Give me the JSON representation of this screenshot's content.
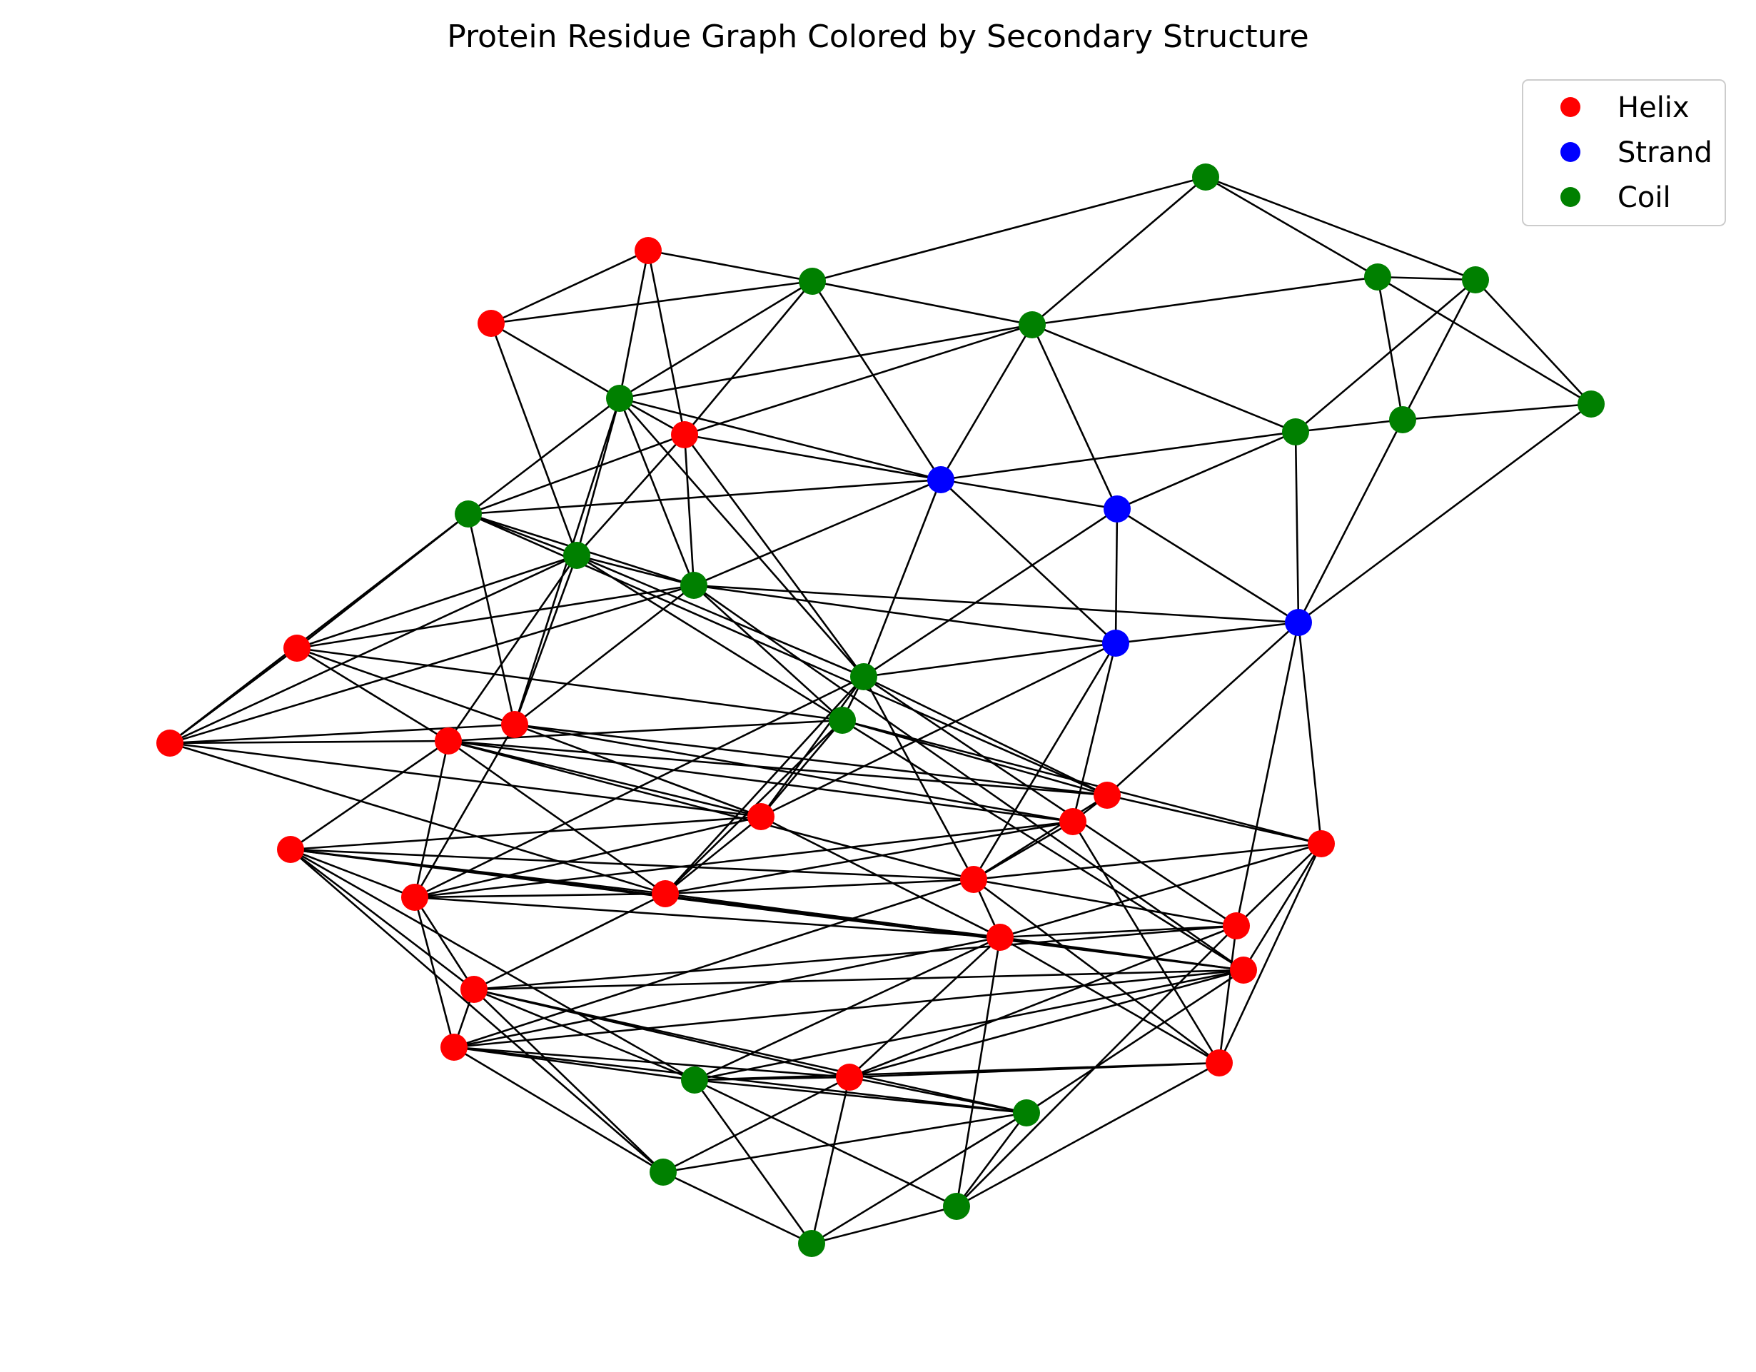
{
  "title": "Protein Residue Graph Colored by Secondary Structure",
  "legend": {
    "placement": "top-right",
    "entries": [
      {
        "label": "Helix",
        "color": "#ff0000"
      },
      {
        "label": "Strand",
        "color": "#0000ff"
      },
      {
        "label": "Coil",
        "color": "#008000"
      }
    ]
  },
  "edge_color": "#000000",
  "nodes": [
    {
      "id": "n1",
      "type": "Coil"
    },
    {
      "id": "n2",
      "type": "Helix"
    },
    {
      "id": "n3",
      "type": "Coil"
    },
    {
      "id": "n4",
      "type": "Helix"
    },
    {
      "id": "n5",
      "type": "Coil"
    },
    {
      "id": "n6",
      "type": "Coil"
    },
    {
      "id": "n7",
      "type": "Coil"
    },
    {
      "id": "n8",
      "type": "Coil"
    },
    {
      "id": "n9",
      "type": "Coil"
    },
    {
      "id": "n10",
      "type": "Coil"
    },
    {
      "id": "n11",
      "type": "Coil"
    },
    {
      "id": "n12",
      "type": "Helix"
    },
    {
      "id": "n13",
      "type": "Strand"
    },
    {
      "id": "n14",
      "type": "Strand"
    },
    {
      "id": "n15",
      "type": "Coil"
    },
    {
      "id": "n16",
      "type": "Coil"
    },
    {
      "id": "n17",
      "type": "Coil"
    },
    {
      "id": "n18",
      "type": "Strand"
    },
    {
      "id": "n19",
      "type": "Strand"
    },
    {
      "id": "n20",
      "type": "Helix"
    },
    {
      "id": "n21",
      "type": "Coil"
    },
    {
      "id": "n22",
      "type": "Coil"
    },
    {
      "id": "n23",
      "type": "Helix"
    },
    {
      "id": "n24",
      "type": "Helix"
    },
    {
      "id": "n25",
      "type": "Helix"
    },
    {
      "id": "n26",
      "type": "Helix"
    },
    {
      "id": "n27",
      "type": "Helix"
    },
    {
      "id": "n28",
      "type": "Helix"
    },
    {
      "id": "n29",
      "type": "Helix"
    },
    {
      "id": "n30",
      "type": "Helix"
    },
    {
      "id": "n31",
      "type": "Helix"
    },
    {
      "id": "n32",
      "type": "Helix"
    },
    {
      "id": "n33",
      "type": "Helix"
    },
    {
      "id": "n34",
      "type": "Helix"
    },
    {
      "id": "n35",
      "type": "Helix"
    },
    {
      "id": "n36",
      "type": "Helix"
    },
    {
      "id": "n37",
      "type": "Helix"
    },
    {
      "id": "n38",
      "type": "Helix"
    },
    {
      "id": "n39",
      "type": "Helix"
    },
    {
      "id": "n40",
      "type": "Helix"
    },
    {
      "id": "n41",
      "type": "Coil"
    },
    {
      "id": "n42",
      "type": "Coil"
    },
    {
      "id": "n43",
      "type": "Coil"
    },
    {
      "id": "n44",
      "type": "Coil"
    },
    {
      "id": "n45",
      "type": "Coil"
    }
  ],
  "edges": [
    [
      "n1",
      "n3"
    ],
    [
      "n1",
      "n9"
    ],
    [
      "n1",
      "n10"
    ],
    [
      "n1",
      "n8"
    ],
    [
      "n9",
      "n10"
    ],
    [
      "n9",
      "n11"
    ],
    [
      "n9",
      "n8"
    ],
    [
      "n9",
      "n16"
    ],
    [
      "n10",
      "n11"
    ],
    [
      "n10",
      "n15"
    ],
    [
      "n10",
      "n16"
    ],
    [
      "n3",
      "n8"
    ],
    [
      "n3",
      "n13"
    ],
    [
      "n3",
      "n12"
    ],
    [
      "n3",
      "n5"
    ],
    [
      "n3",
      "n2"
    ],
    [
      "n3",
      "n4"
    ],
    [
      "n8",
      "n15"
    ],
    [
      "n8",
      "n14"
    ],
    [
      "n8",
      "n13"
    ],
    [
      "n8",
      "n5"
    ],
    [
      "n8",
      "n12"
    ],
    [
      "n15",
      "n16"
    ],
    [
      "n15",
      "n14"
    ],
    [
      "n15",
      "n13"
    ],
    [
      "n15",
      "n19"
    ],
    [
      "n16",
      "n19"
    ],
    [
      "n16",
      "n11"
    ],
    [
      "n11",
      "n19"
    ],
    [
      "n2",
      "n4"
    ],
    [
      "n2",
      "n5"
    ],
    [
      "n2",
      "n12"
    ],
    [
      "n4",
      "n5"
    ],
    [
      "n4",
      "n7"
    ],
    [
      "n5",
      "n12"
    ],
    [
      "n5",
      "n6"
    ],
    [
      "n5",
      "n7"
    ],
    [
      "n5",
      "n21"
    ],
    [
      "n5",
      "n17"
    ],
    [
      "n5",
      "n24"
    ],
    [
      "n5",
      "n13"
    ],
    [
      "n12",
      "n13"
    ],
    [
      "n12",
      "n7"
    ],
    [
      "n12",
      "n17"
    ],
    [
      "n12",
      "n21"
    ],
    [
      "n12",
      "n6"
    ],
    [
      "n13",
      "n14"
    ],
    [
      "n13",
      "n18"
    ],
    [
      "n13",
      "n6"
    ],
    [
      "n13",
      "n21"
    ],
    [
      "n13",
      "n17"
    ],
    [
      "n14",
      "n18"
    ],
    [
      "n14",
      "n19"
    ],
    [
      "n14",
      "n21"
    ],
    [
      "n18",
      "n19"
    ],
    [
      "n18",
      "n21"
    ],
    [
      "n18",
      "n30"
    ],
    [
      "n18",
      "n27"
    ],
    [
      "n18",
      "n28"
    ],
    [
      "n19",
      "n29"
    ],
    [
      "n19",
      "n25"
    ],
    [
      "n19",
      "n31"
    ],
    [
      "n6",
      "n7"
    ],
    [
      "n6",
      "n17"
    ],
    [
      "n6",
      "n24"
    ],
    [
      "n6",
      "n20"
    ],
    [
      "n6",
      "n23"
    ],
    [
      "n6",
      "n25"
    ],
    [
      "n7",
      "n17"
    ],
    [
      "n7",
      "n24"
    ],
    [
      "n7",
      "n20"
    ],
    [
      "n7",
      "n21"
    ],
    [
      "n7",
      "n22"
    ],
    [
      "n7",
      "n23"
    ],
    [
      "n7",
      "n26"
    ],
    [
      "n17",
      "n24"
    ],
    [
      "n17",
      "n20"
    ],
    [
      "n17",
      "n18"
    ],
    [
      "n17",
      "n22"
    ],
    [
      "n17",
      "n23"
    ],
    [
      "n17",
      "n19"
    ],
    [
      "n17",
      "n36"
    ],
    [
      "n20",
      "n23"
    ],
    [
      "n20",
      "n24"
    ],
    [
      "n20",
      "n26"
    ],
    [
      "n20",
      "n22"
    ],
    [
      "n23",
      "n24"
    ],
    [
      "n23",
      "n26"
    ],
    [
      "n23",
      "n27"
    ],
    [
      "n23",
      "n32"
    ],
    [
      "n24",
      "n25"
    ],
    [
      "n24",
      "n27"
    ],
    [
      "n24",
      "n28"
    ],
    [
      "n24",
      "n33"
    ],
    [
      "n21",
      "n22"
    ],
    [
      "n21",
      "n27"
    ],
    [
      "n21",
      "n30"
    ],
    [
      "n21",
      "n31"
    ],
    [
      "n21",
      "n32"
    ],
    [
      "n21",
      "n33"
    ],
    [
      "n21",
      "n25"
    ],
    [
      "n22",
      "n25"
    ],
    [
      "n22",
      "n27"
    ],
    [
      "n22",
      "n26"
    ],
    [
      "n22",
      "n29"
    ],
    [
      "n22",
      "n32"
    ],
    [
      "n22",
      "n36"
    ],
    [
      "n25",
      "n28"
    ],
    [
      "n25",
      "n26"
    ],
    [
      "n25",
      "n29"
    ],
    [
      "n25",
      "n30"
    ],
    [
      "n26",
      "n27"
    ],
    [
      "n26",
      "n28"
    ],
    [
      "n26",
      "n30"
    ],
    [
      "n26",
      "n32"
    ],
    [
      "n26",
      "n34"
    ],
    [
      "n26",
      "n33"
    ],
    [
      "n27",
      "n32"
    ],
    [
      "n27",
      "n33"
    ],
    [
      "n27",
      "n34"
    ],
    [
      "n27",
      "n35"
    ],
    [
      "n28",
      "n32"
    ],
    [
      "n28",
      "n37"
    ],
    [
      "n28",
      "n33"
    ],
    [
      "n28",
      "n30"
    ],
    [
      "n29",
      "n30"
    ],
    [
      "n29",
      "n35"
    ],
    [
      "n29",
      "n37"
    ],
    [
      "n29",
      "n31"
    ],
    [
      "n29",
      "n36"
    ],
    [
      "n30",
      "n32"
    ],
    [
      "n30",
      "n35"
    ],
    [
      "n30",
      "n37"
    ],
    [
      "n30",
      "n34"
    ],
    [
      "n30",
      "n39"
    ],
    [
      "n30",
      "n31"
    ],
    [
      "n31",
      "n35"
    ],
    [
      "n31",
      "n37"
    ],
    [
      "n31",
      "n44"
    ],
    [
      "n31",
      "n40"
    ],
    [
      "n31",
      "n38"
    ],
    [
      "n32",
      "n33"
    ],
    [
      "n32",
      "n34"
    ],
    [
      "n32",
      "n38"
    ],
    [
      "n32",
      "n36"
    ],
    [
      "n33",
      "n34"
    ],
    [
      "n33",
      "n35"
    ],
    [
      "n33",
      "n39"
    ],
    [
      "n33",
      "n38"
    ],
    [
      "n34",
      "n35"
    ],
    [
      "n34",
      "n36"
    ],
    [
      "n34",
      "n38"
    ],
    [
      "n34",
      "n42"
    ],
    [
      "n34",
      "n41"
    ],
    [
      "n35",
      "n36"
    ],
    [
      "n35",
      "n37"
    ],
    [
      "n35",
      "n39"
    ],
    [
      "n35",
      "n40"
    ],
    [
      "n35",
      "n44"
    ],
    [
      "n35",
      "n41"
    ],
    [
      "n36",
      "n38"
    ],
    [
      "n36",
      "n39"
    ],
    [
      "n36",
      "n40"
    ],
    [
      "n36",
      "n41"
    ],
    [
      "n36",
      "n43"
    ],
    [
      "n37",
      "n40"
    ],
    [
      "n37",
      "n44"
    ],
    [
      "n37",
      "n41"
    ],
    [
      "n38",
      "n39"
    ],
    [
      "n38",
      "n40"
    ],
    [
      "n38",
      "n41"
    ],
    [
      "n38",
      "n42"
    ],
    [
      "n38",
      "n43"
    ],
    [
      "n39",
      "n40"
    ],
    [
      "n39",
      "n41"
    ],
    [
      "n39",
      "n42"
    ],
    [
      "n39",
      "n43"
    ],
    [
      "n40",
      "n41"
    ],
    [
      "n40",
      "n42"
    ],
    [
      "n40",
      "n45"
    ],
    [
      "n40",
      "n43"
    ],
    [
      "n41",
      "n44"
    ],
    [
      "n41",
      "n45"
    ],
    [
      "n41",
      "n43"
    ],
    [
      "n42",
      "n45"
    ],
    [
      "n42",
      "n43"
    ],
    [
      "n43",
      "n45"
    ],
    [
      "n43",
      "n44"
    ],
    [
      "n44",
      "n45"
    ]
  ]
}
